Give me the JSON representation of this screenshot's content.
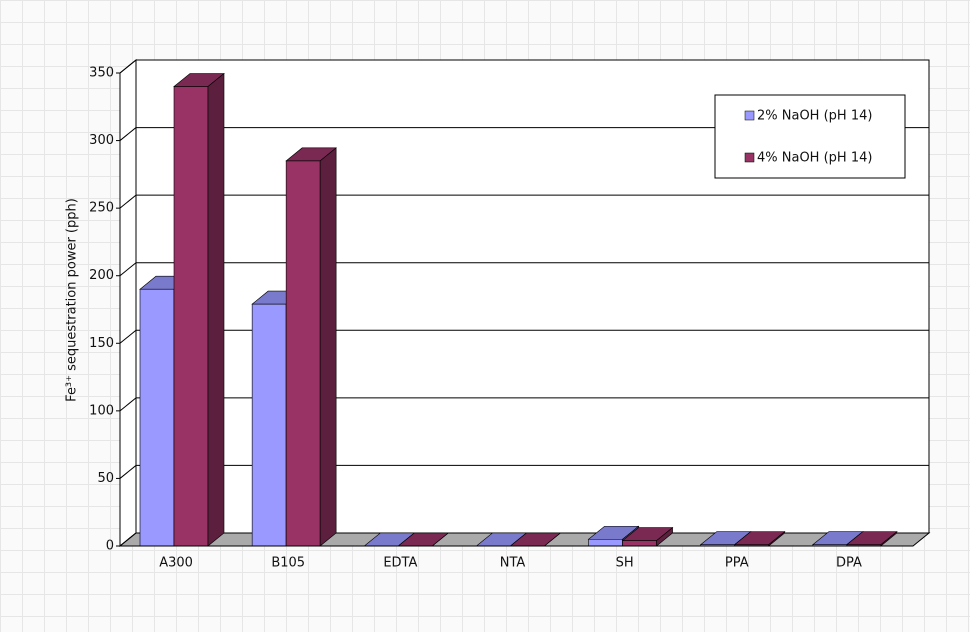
{
  "chart_data": {
    "type": "bar3d",
    "y_label": "Fe³⁺ sequestration power (pph)",
    "categories": [
      "A300",
      "B105",
      "EDTA",
      "NTA",
      "SH",
      "PPA",
      "DPA"
    ],
    "series": [
      {
        "name": "2% NaOH (pH 14)",
        "color": "#9999ff",
        "values": [
          190,
          179,
          0,
          0,
          5,
          1,
          1
        ]
      },
      {
        "name": "4% NaOH (pH 14)",
        "color": "#993366",
        "values": [
          340,
          285,
          0,
          0,
          4,
          1,
          1
        ]
      }
    ],
    "ylim": [
      0,
      350
    ],
    "yticks": [
      0,
      50,
      100,
      150,
      200,
      250,
      300,
      350
    ],
    "grid": true,
    "legend": "top-right"
  }
}
